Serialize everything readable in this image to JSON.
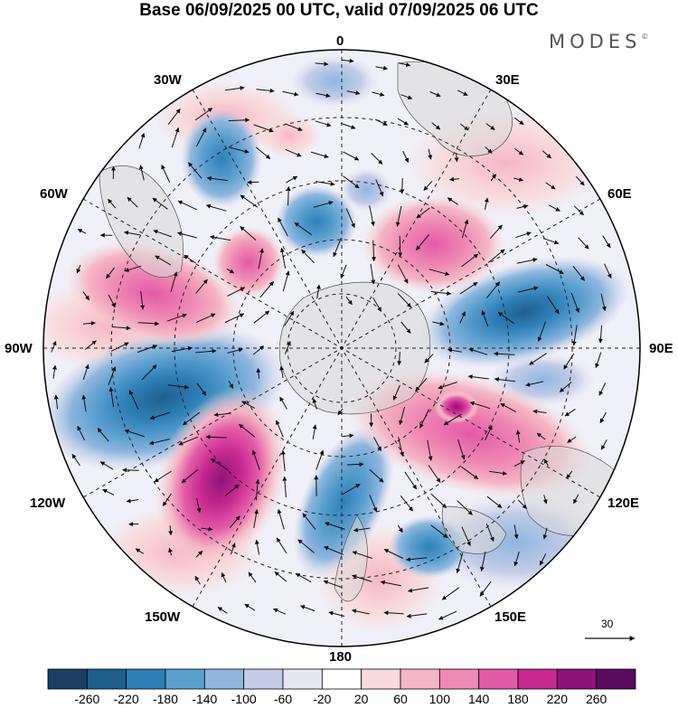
{
  "title": "Base 06/09/2025 00 UTC, valid 07/09/2025 06 UTC",
  "brand": "MODES",
  "brand_mark": "©",
  "meridian_labels": {
    "m0": "0",
    "m30e": "30E",
    "m60e": "60E",
    "m90e": "90E",
    "m120e": "120E",
    "m150e": "150E",
    "m180": "180",
    "m150w": "150W",
    "m120w": "120W",
    "m90w": "90W",
    "m60w": "60W",
    "m30w": "30W"
  },
  "wind_reference": {
    "value": "30"
  },
  "colorbar": {
    "labels": [
      "-260",
      "-220",
      "-180",
      "-140",
      "-100",
      "-60",
      "-20",
      "20",
      "60",
      "100",
      "140",
      "180",
      "220",
      "260"
    ],
    "colors": [
      "#1b3f63",
      "#1f5f8e",
      "#2f7fb6",
      "#5b9fcf",
      "#8fb6de",
      "#c2cce8",
      "#e6e6f4",
      "#ffffff",
      "#f9dada",
      "#f5b6c5",
      "#ef8ab4",
      "#e35aa6",
      "#c7288f",
      "#8c1479",
      "#5a0b5e"
    ]
  },
  "features": {
    "anomaly": "geopotential height anomaly",
    "vectors": "wind"
  }
}
